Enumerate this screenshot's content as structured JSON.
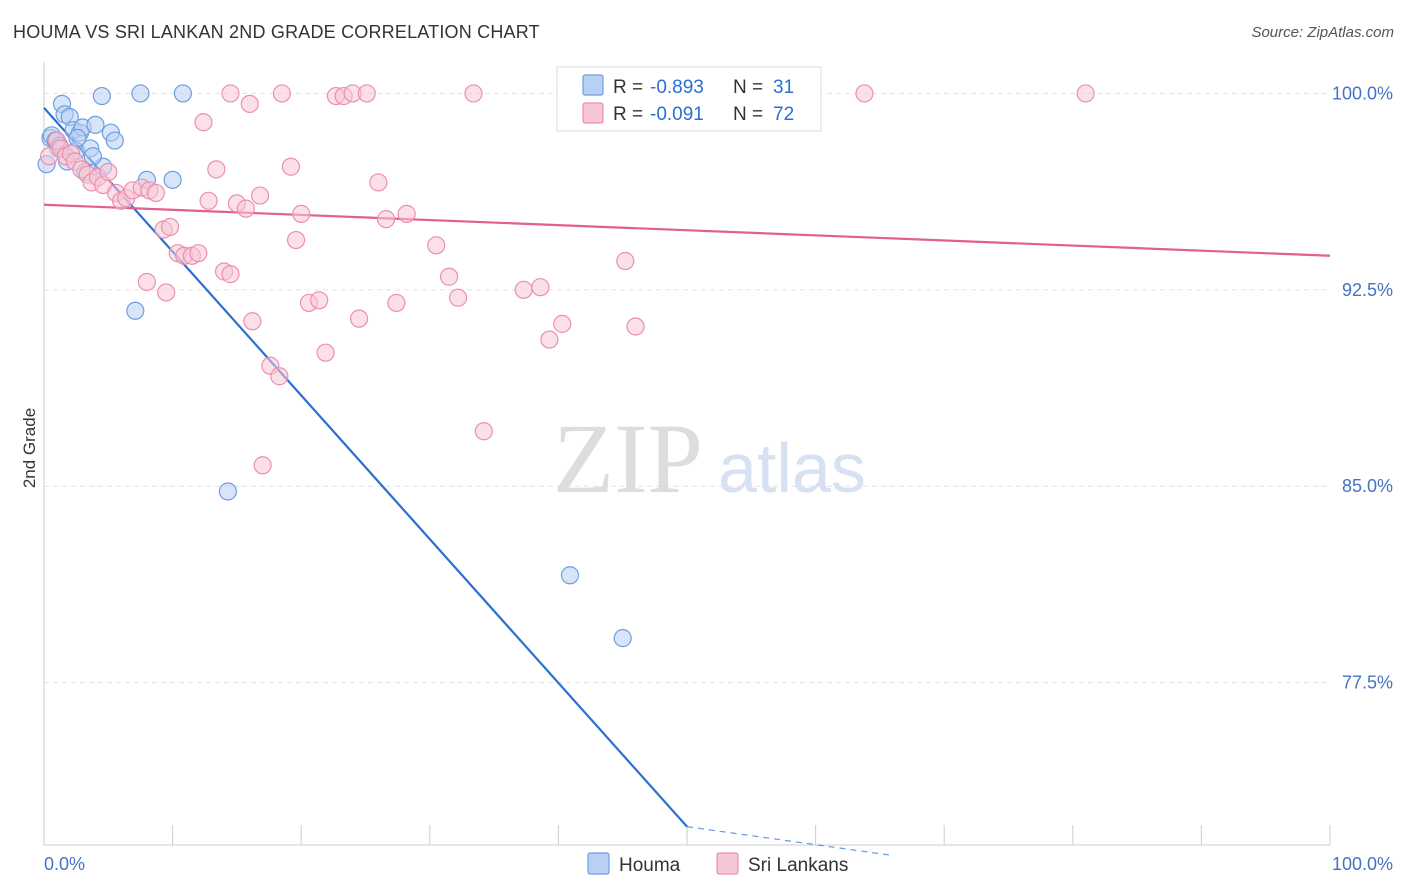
{
  "title": "HOUMA VS SRI LANKAN 2ND GRADE CORRELATION CHART",
  "source": "Source: ZipAtlas.com",
  "watermark": {
    "zip": "ZIP",
    "atlas": "atlas"
  },
  "colors": {
    "houma": "#6f9ee0",
    "houma_fill": "#b8d0f2",
    "houma_line": "#2a6fd1",
    "sri": "#ec8fae",
    "sri_fill": "#f7c6d6",
    "sri_line": "#e35f8d",
    "grid": "#e3e3e3",
    "tick_text": "#4472c4"
  },
  "legend": {
    "houma": {
      "r_label": "R =",
      "r_value": "-0.893",
      "n_label": "N =",
      "n_value": "31"
    },
    "sri": {
      "r_label": "R =",
      "r_value": "-0.091",
      "n_label": "N =",
      "n_value": "72"
    }
  },
  "chart_data": {
    "type": "scatter",
    "title": "HOUMA VS SRI LANKAN 2ND GRADE CORRELATION CHART",
    "xlabel": "",
    "ylabel": "2nd Grade",
    "xlim": [
      0,
      100
    ],
    "ylim": [
      71.3,
      101.2
    ],
    "x_tick_labels": [
      "0.0%",
      "100.0%"
    ],
    "y_ticks": [
      100.0,
      92.5,
      85.0,
      77.5
    ],
    "y_tick_labels": [
      "100.0%",
      "92.5%",
      "85.0%",
      "77.5%"
    ],
    "grid": true,
    "legend_position": "top-center",
    "series": [
      {
        "name": "Houma",
        "points": [
          [
            0.2,
            97.3
          ],
          [
            0.5,
            98.3
          ],
          [
            0.6,
            98.4
          ],
          [
            0.9,
            98.2
          ],
          [
            1.1,
            97.9
          ],
          [
            1.4,
            99.6
          ],
          [
            1.6,
            99.2
          ],
          [
            1.8,
            97.4
          ],
          [
            2.0,
            99.1
          ],
          [
            2.3,
            98.6
          ],
          [
            2.5,
            97.8
          ],
          [
            2.8,
            98.5
          ],
          [
            3.0,
            98.7
          ],
          [
            3.2,
            97.0
          ],
          [
            3.6,
            97.9
          ],
          [
            4.0,
            98.8
          ],
          [
            4.6,
            97.2
          ],
          [
            5.2,
            98.5
          ],
          [
            5.5,
            98.2
          ],
          [
            4.5,
            99.9
          ],
          [
            7.5,
            100.0
          ],
          [
            10.8,
            100.0
          ],
          [
            8.0,
            96.7
          ],
          [
            10.0,
            96.7
          ],
          [
            7.1,
            91.7
          ],
          [
            14.3,
            84.8
          ],
          [
            40.9,
            81.6
          ],
          [
            45.0,
            79.2
          ],
          [
            1.2,
            98.0
          ],
          [
            2.6,
            98.3
          ],
          [
            3.8,
            97.6
          ]
        ],
        "trend": {
          "x": [
            0.0,
            50.0
          ],
          "y": [
            99.45,
            72.0
          ]
        },
        "trend_dashed": {
          "x": [
            50.0,
            66.0
          ],
          "y": [
            72.0,
            70.9
          ]
        }
      },
      {
        "name": "Sri Lankans",
        "points": [
          [
            0.4,
            97.6
          ],
          [
            1.0,
            98.2
          ],
          [
            1.3,
            97.9
          ],
          [
            1.7,
            97.6
          ],
          [
            2.1,
            97.7
          ],
          [
            2.4,
            97.4
          ],
          [
            2.9,
            97.1
          ],
          [
            3.4,
            96.9
          ],
          [
            3.7,
            96.6
          ],
          [
            4.2,
            96.8
          ],
          [
            4.6,
            96.5
          ],
          [
            5.0,
            97.0
          ],
          [
            5.6,
            96.2
          ],
          [
            6.0,
            95.9
          ],
          [
            6.4,
            96.0
          ],
          [
            6.9,
            96.3
          ],
          [
            7.6,
            96.4
          ],
          [
            8.2,
            96.3
          ],
          [
            8.7,
            96.2
          ],
          [
            9.3,
            94.8
          ],
          [
            9.8,
            94.9
          ],
          [
            10.4,
            93.9
          ],
          [
            10.9,
            93.8
          ],
          [
            11.5,
            93.8
          ],
          [
            12.0,
            93.9
          ],
          [
            12.4,
            98.9
          ],
          [
            12.8,
            95.9
          ],
          [
            13.4,
            97.1
          ],
          [
            14.0,
            93.2
          ],
          [
            14.5,
            93.1
          ],
          [
            15.0,
            95.8
          ],
          [
            15.7,
            95.6
          ],
          [
            16.2,
            91.3
          ],
          [
            16.8,
            96.1
          ],
          [
            17.6,
            89.6
          ],
          [
            18.3,
            89.2
          ],
          [
            19.2,
            97.2
          ],
          [
            19.6,
            94.4
          ],
          [
            20.0,
            95.4
          ],
          [
            20.6,
            92.0
          ],
          [
            21.4,
            92.1
          ],
          [
            21.9,
            90.1
          ],
          [
            22.7,
            99.9
          ],
          [
            23.3,
            99.9
          ],
          [
            24.0,
            100.0
          ],
          [
            24.5,
            91.4
          ],
          [
            25.1,
            100.0
          ],
          [
            26.0,
            96.6
          ],
          [
            26.6,
            95.2
          ],
          [
            27.4,
            92.0
          ],
          [
            28.2,
            95.4
          ],
          [
            30.5,
            94.2
          ],
          [
            31.5,
            93.0
          ],
          [
            32.2,
            92.2
          ],
          [
            33.4,
            100.0
          ],
          [
            34.2,
            87.1
          ],
          [
            37.3,
            92.5
          ],
          [
            38.6,
            92.6
          ],
          [
            39.3,
            90.6
          ],
          [
            40.3,
            91.2
          ],
          [
            41.0,
            100.0
          ],
          [
            44.3,
            100.0
          ],
          [
            45.2,
            93.6
          ],
          [
            46.0,
            91.1
          ],
          [
            63.8,
            100.0
          ],
          [
            81.0,
            100.0
          ],
          [
            14.5,
            100.0
          ],
          [
            16.0,
            99.6
          ],
          [
            18.5,
            100.0
          ],
          [
            9.5,
            92.4
          ],
          [
            8.0,
            92.8
          ],
          [
            17.0,
            85.8
          ]
        ],
        "trend": {
          "x": [
            0.0,
            100.0
          ],
          "y": [
            95.75,
            93.8
          ]
        }
      }
    ]
  }
}
